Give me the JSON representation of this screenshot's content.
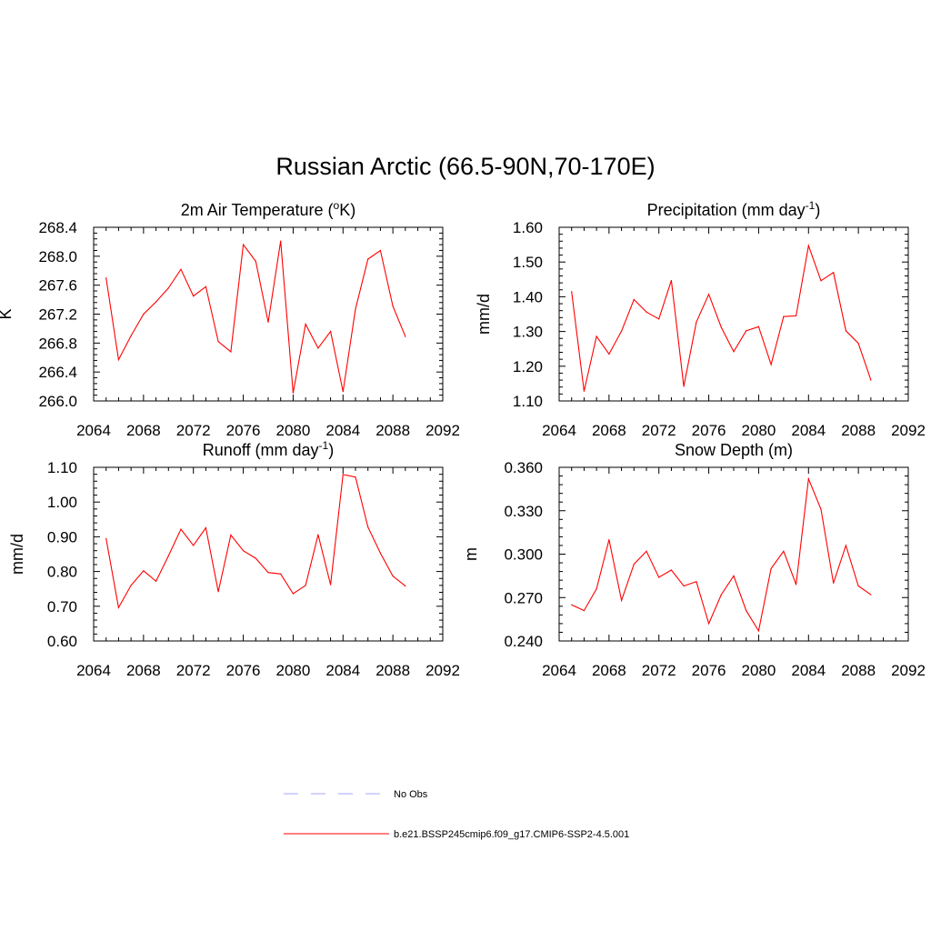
{
  "title": "Russian Arctic (66.5-90N,70-170E)",
  "colors": {
    "series": "#ff0000",
    "obs": "#a6a6ff",
    "axis": "#000000"
  },
  "legend": {
    "items": [
      {
        "label": "No Obs",
        "style": "dashed",
        "color": "#a6a6ff"
      },
      {
        "label": "b.e21.BSSP245cmip6.f09_g17.CMIP6-SSP2-4.5.001",
        "style": "solid",
        "color": "#ff0000"
      }
    ]
  },
  "chart_data": [
    {
      "type": "line",
      "title": "2m Air Temperature (",
      "title_sup": "o",
      "title_tail": "K)",
      "ylabel": "K",
      "xlim": [
        2064,
        2092
      ],
      "ylim": [
        266.0,
        268.4
      ],
      "xticks": [
        "2064",
        "2068",
        "2072",
        "2076",
        "2080",
        "2084",
        "2088",
        "2092"
      ],
      "yticks": [
        "266.0",
        "266.4",
        "266.8",
        "267.2",
        "267.6",
        "268.0",
        "268.4"
      ],
      "series": [
        {
          "x": [
            2065,
            2066,
            2067,
            2068,
            2069,
            2070,
            2071,
            2072,
            2073,
            2074,
            2075,
            2076,
            2077,
            2078,
            2079,
            2080,
            2081,
            2082,
            2083,
            2084,
            2085,
            2086,
            2087,
            2088,
            2089
          ],
          "values": [
            267.7,
            266.57,
            266.9,
            267.2,
            267.37,
            267.56,
            267.82,
            267.45,
            267.58,
            266.82,
            266.68,
            268.16,
            267.93,
            267.09,
            268.21,
            266.11,
            267.06,
            266.73,
            266.96,
            266.13,
            267.27,
            267.96,
            268.08,
            267.31,
            266.89
          ]
        }
      ]
    },
    {
      "type": "line",
      "title": "Precipitation (mm day",
      "title_sup": "-1",
      "title_tail": ")",
      "ylabel": "mm/d",
      "xlim": [
        2064,
        2092
      ],
      "ylim": [
        1.1,
        1.6
      ],
      "xticks": [
        "2064",
        "2068",
        "2072",
        "2076",
        "2080",
        "2084",
        "2088",
        "2092"
      ],
      "yticks": [
        "1.10",
        "1.20",
        "1.30",
        "1.40",
        "1.50",
        "1.60"
      ],
      "series": [
        {
          "x": [
            2065,
            2066,
            2067,
            2068,
            2069,
            2070,
            2071,
            2072,
            2073,
            2074,
            2075,
            2076,
            2077,
            2078,
            2079,
            2080,
            2081,
            2082,
            2083,
            2084,
            2085,
            2086,
            2087,
            2088,
            2089
          ],
          "values": [
            1.415,
            1.128,
            1.286,
            1.235,
            1.301,
            1.392,
            1.356,
            1.336,
            1.447,
            1.142,
            1.327,
            1.407,
            1.312,
            1.242,
            1.302,
            1.314,
            1.205,
            1.343,
            1.345,
            1.547,
            1.446,
            1.47,
            1.302,
            1.266,
            1.16
          ]
        }
      ]
    },
    {
      "type": "line",
      "title": "Runoff (mm day",
      "title_sup": "-1",
      "title_tail": ")",
      "ylabel": "mm/d",
      "xlim": [
        2064,
        2092
      ],
      "ylim": [
        0.6,
        1.1
      ],
      "xticks": [
        "2064",
        "2068",
        "2072",
        "2076",
        "2080",
        "2084",
        "2088",
        "2092"
      ],
      "yticks": [
        "0.60",
        "0.70",
        "0.80",
        "0.90",
        "1.00",
        "1.10"
      ],
      "series": [
        {
          "x": [
            2065,
            2066,
            2067,
            2068,
            2069,
            2070,
            2071,
            2072,
            2073,
            2074,
            2075,
            2076,
            2077,
            2078,
            2079,
            2080,
            2081,
            2082,
            2083,
            2084,
            2085,
            2086,
            2087,
            2088,
            2089
          ],
          "values": [
            0.895,
            0.696,
            0.76,
            0.802,
            0.772,
            0.845,
            0.922,
            0.875,
            0.926,
            0.742,
            0.905,
            0.86,
            0.838,
            0.797,
            0.793,
            0.736,
            0.76,
            0.906,
            0.762,
            1.079,
            1.072,
            0.928,
            0.853,
            0.787,
            0.758
          ]
        }
      ]
    },
    {
      "type": "line",
      "title": "Snow Depth (m)",
      "title_sup": "",
      "title_tail": "",
      "ylabel": "m",
      "xlim": [
        2064,
        2092
      ],
      "ylim": [
        0.24,
        0.36
      ],
      "xticks": [
        "2064",
        "2068",
        "2072",
        "2076",
        "2080",
        "2084",
        "2088",
        "2092"
      ],
      "yticks": [
        "0.240",
        "0.270",
        "0.300",
        "0.330",
        "0.360"
      ],
      "series": [
        {
          "x": [
            2065,
            2066,
            2067,
            2068,
            2069,
            2070,
            2071,
            2072,
            2073,
            2074,
            2075,
            2076,
            2077,
            2078,
            2079,
            2080,
            2081,
            2082,
            2083,
            2084,
            2085,
            2086,
            2087,
            2088,
            2089
          ],
          "values": [
            0.265,
            0.261,
            0.276,
            0.31,
            0.268,
            0.293,
            0.302,
            0.284,
            0.289,
            0.278,
            0.281,
            0.252,
            0.272,
            0.285,
            0.261,
            0.247,
            0.29,
            0.302,
            0.279,
            0.352,
            0.331,
            0.28,
            0.306,
            0.278,
            0.272
          ]
        }
      ]
    }
  ]
}
